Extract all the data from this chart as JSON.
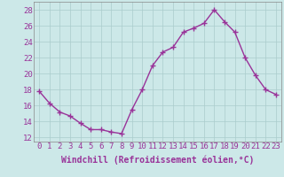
{
  "x": [
    0,
    1,
    2,
    3,
    4,
    5,
    6,
    7,
    8,
    9,
    10,
    11,
    12,
    13,
    14,
    15,
    16,
    17,
    18,
    19,
    20,
    21,
    22,
    23
  ],
  "y": [
    17.8,
    16.3,
    15.2,
    14.7,
    13.8,
    13.0,
    13.0,
    12.7,
    12.5,
    15.5,
    18.0,
    21.0,
    22.7,
    23.3,
    25.2,
    25.7,
    26.3,
    28.0,
    26.5,
    25.2,
    22.0,
    19.8,
    18.0,
    17.4
  ],
  "line_color": "#993399",
  "marker": "+",
  "markersize": 4,
  "linewidth": 1,
  "background_color": "#cce8e8",
  "grid_color": "#aacccc",
  "xlabel": "Windchill (Refroidissement éolien,°C)",
  "ylim": [
    11.5,
    29
  ],
  "xlim": [
    -0.5,
    23.5
  ],
  "yticks": [
    12,
    14,
    16,
    18,
    20,
    22,
    24,
    26,
    28
  ],
  "xticks": [
    0,
    1,
    2,
    3,
    4,
    5,
    6,
    7,
    8,
    9,
    10,
    11,
    12,
    13,
    14,
    15,
    16,
    17,
    18,
    19,
    20,
    21,
    22,
    23
  ],
  "xlabel_fontsize": 7,
  "tick_fontsize": 6.5,
  "tick_color": "#993399",
  "spine_color": "#888888"
}
